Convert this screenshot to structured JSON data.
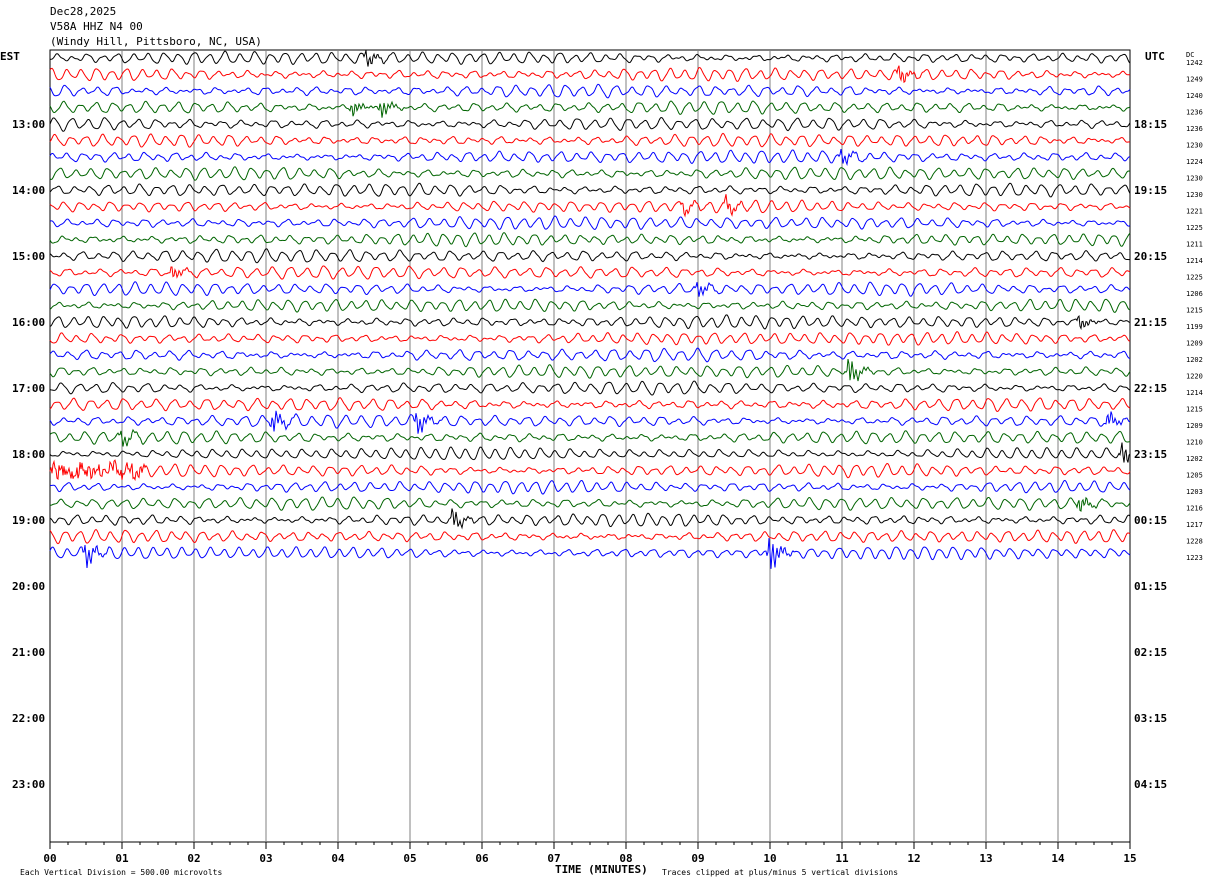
{
  "header": {
    "date": "Dec28,2025",
    "station": "V58A HHZ N4 00",
    "location": "(Windy Hill, Pittsboro, NC, USA)"
  },
  "chart_data": {
    "type": "line",
    "title": "V58A HHZ N4 00",
    "left_axis_label": "EST",
    "right_axis_label": "UTC",
    "dc_label": "DC",
    "xlabel": "TIME (MINUTES)",
    "x_ticks": [
      "00",
      "01",
      "02",
      "03",
      "04",
      "05",
      "06",
      "07",
      "08",
      "09",
      "10",
      "11",
      "12",
      "13",
      "14",
      "15"
    ],
    "xlim": [
      0,
      15
    ],
    "left_hour_labels": [
      "13:00",
      "14:00",
      "15:00",
      "16:00",
      "17:00",
      "18:00",
      "19:00",
      "20:00",
      "21:00",
      "22:00",
      "23:00"
    ],
    "right_hour_labels": [
      "18:15",
      "19:15",
      "20:15",
      "21:15",
      "22:15",
      "23:15",
      "00:15",
      "01:15",
      "02:15",
      "03:15",
      "04:15"
    ],
    "trace_colors": [
      "#000000",
      "#ff0000",
      "#0000ff",
      "#006400"
    ],
    "dc_values": [
      1242,
      1249,
      1240,
      1236,
      1236,
      1230,
      1224,
      1230,
      1230,
      1221,
      1225,
      1211,
      1214,
      1225,
      1206,
      1215,
      1199,
      1209,
      1202,
      1220,
      1214,
      1215,
      1209,
      1210,
      1202,
      1205,
      1203,
      1216,
      1217,
      1228,
      1223
    ],
    "traces_total": 31,
    "footer_left": "Each Vertical Division =  500.00 microvolts",
    "footer_right": "Traces clipped at plus/minus 5 vertical divisions",
    "events": [
      {
        "trace": 0,
        "minute": 4.4,
        "amp": 1.3
      },
      {
        "trace": 1,
        "minute": 11.8,
        "amp": 1.4
      },
      {
        "trace": 3,
        "minute": 4.6,
        "amp": 1.5
      },
      {
        "trace": 3,
        "minute": 4.2,
        "amp": 1.2
      },
      {
        "trace": 6,
        "minute": 11.0,
        "amp": 1.2
      },
      {
        "trace": 9,
        "minute": 9.4,
        "amp": 1.2
      },
      {
        "trace": 9,
        "minute": 8.8,
        "amp": 0.9
      },
      {
        "trace": 13,
        "minute": 1.7,
        "amp": 1.1
      },
      {
        "trace": 14,
        "minute": 9.0,
        "amp": 1.2
      },
      {
        "trace": 16,
        "minute": 14.3,
        "amp": 1.1
      },
      {
        "trace": 19,
        "minute": 11.1,
        "amp": 2.2
      },
      {
        "trace": 22,
        "minute": 3.1,
        "amp": 1.8
      },
      {
        "trace": 22,
        "minute": 5.1,
        "amp": 1.9
      },
      {
        "trace": 22,
        "minute": 14.7,
        "amp": 1.3
      },
      {
        "trace": 23,
        "minute": 1.0,
        "amp": 1.2
      },
      {
        "trace": 24,
        "minute": 14.9,
        "amp": 1.8
      },
      {
        "trace": 25,
        "minute": 0.8,
        "amp": 1.7,
        "burst": true
      },
      {
        "trace": 27,
        "minute": 14.3,
        "amp": 1.3
      },
      {
        "trace": 28,
        "minute": 5.6,
        "amp": 1.6
      },
      {
        "trace": 30,
        "minute": 0.5,
        "amp": 2.0
      },
      {
        "trace": 30,
        "minute": 10.0,
        "amp": 3.0
      }
    ]
  }
}
